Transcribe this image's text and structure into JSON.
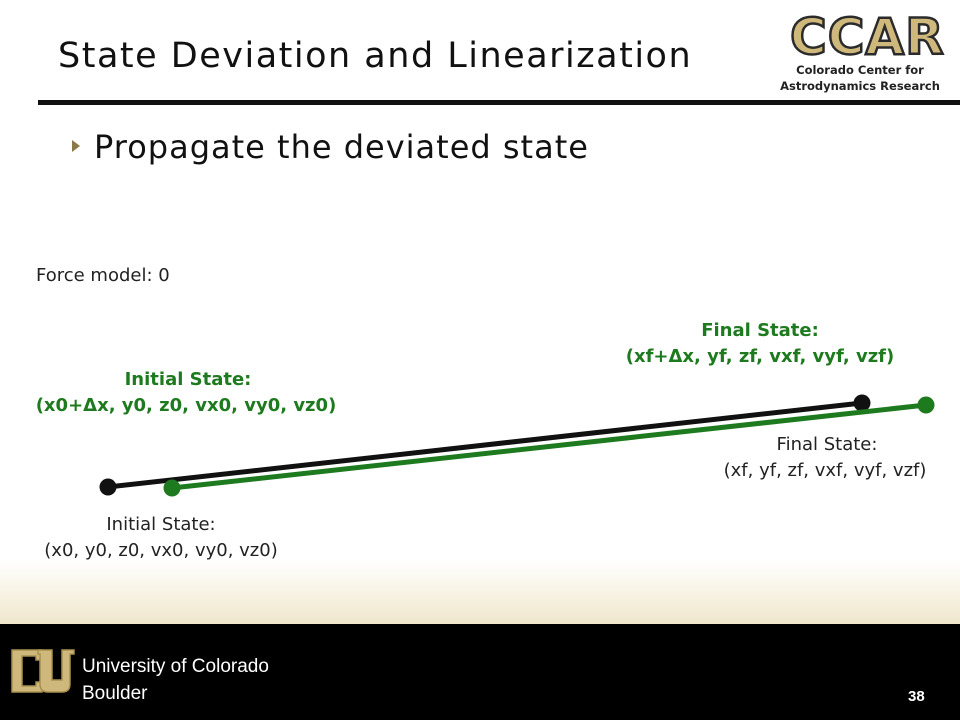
{
  "slide": {
    "title": "State Deviation and Linearization",
    "bullet": "Propagate the deviated state",
    "page_number": "38"
  },
  "logo": {
    "acronym": "CCAR",
    "line1": "Colorado Center for",
    "line2": "Astrodynamics Research"
  },
  "footer": {
    "university_line1": "University of Colorado",
    "university_line2": "Boulder"
  },
  "diagram": {
    "force_model": "Force model:  0",
    "nominal": {
      "color": "#111111",
      "initial_title": "Initial State:",
      "initial_state": "(x0, y0, z0, vx0, vy0, vz0)",
      "final_title": "Final State:",
      "final_state": "(xf, yf, zf, vxf, vyf, vzf)"
    },
    "deviated": {
      "color": "#1e7a1e",
      "initial_title": "Initial State:",
      "initial_state": "(x0+Δx, y0, z0, vx0, vy0, vz0)",
      "final_title": "Final State:",
      "final_state": "(xf+Δx, yf, zf, vxf, vyf, vzf)"
    }
  },
  "colors": {
    "accent_gold": "#cfb87c",
    "footer_bg": "#000000"
  }
}
